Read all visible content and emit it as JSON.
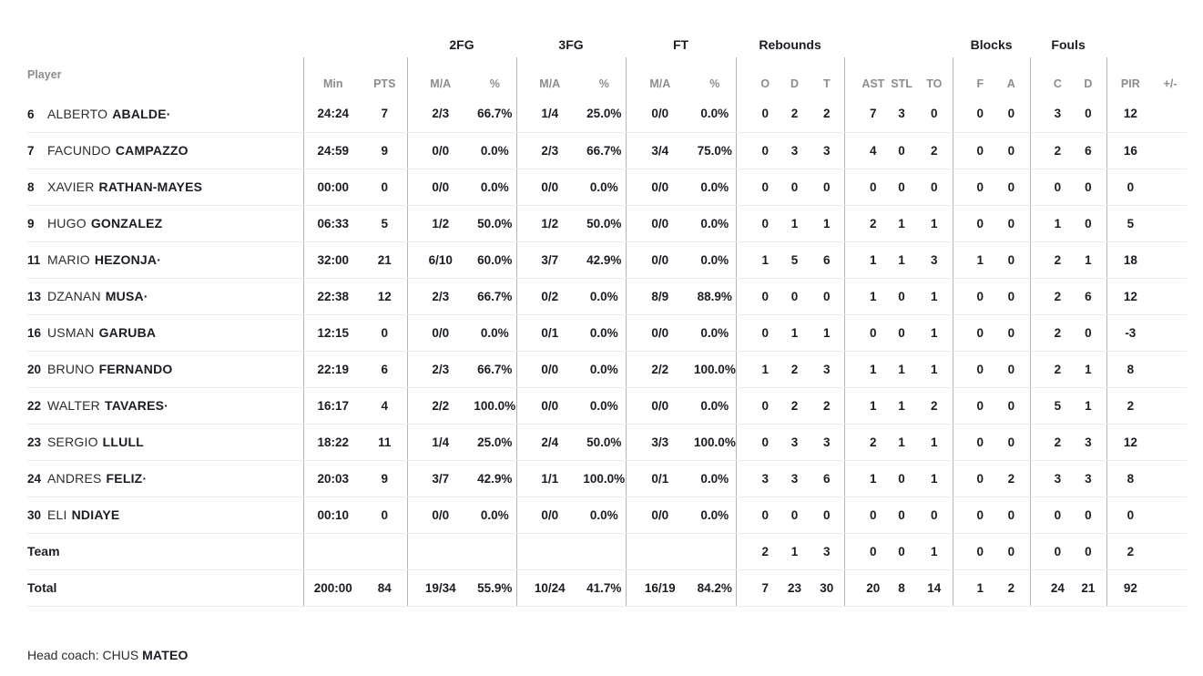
{
  "table": {
    "groups": {
      "fg2": "2FG",
      "fg3": "3FG",
      "ft": "FT",
      "rebounds": "Rebounds",
      "blocks": "Blocks",
      "fouls": "Fouls"
    },
    "columns": {
      "player": "Player",
      "min": "Min",
      "pts": "PTS",
      "ma": "M/A",
      "pct": "%",
      "o": "O",
      "d": "D",
      "t": "T",
      "ast": "AST",
      "stl": "STL",
      "to": "TO",
      "f": "F",
      "a": "A",
      "c": "C",
      "pir": "PIR",
      "pm": "+/-"
    },
    "rows": [
      {
        "num": "6",
        "first": "ALBERTO",
        "last": "ABALDE",
        "starter": true,
        "min": "24:24",
        "pts": "7",
        "fg2_ma": "2/3",
        "fg2_pct": "66.7%",
        "fg3_ma": "1/4",
        "fg3_pct": "25.0%",
        "ft_ma": "0/0",
        "ft_pct": "0.0%",
        "reb_o": "0",
        "reb_d": "2",
        "reb_t": "2",
        "ast": "7",
        "stl": "3",
        "to": "0",
        "blk_f": "0",
        "blk_a": "0",
        "foul_c": "3",
        "foul_d": "0",
        "pir": "12",
        "pm": ""
      },
      {
        "num": "7",
        "first": "FACUNDO",
        "last": "CAMPAZZO",
        "starter": false,
        "min": "24:59",
        "pts": "9",
        "fg2_ma": "0/0",
        "fg2_pct": "0.0%",
        "fg3_ma": "2/3",
        "fg3_pct": "66.7%",
        "ft_ma": "3/4",
        "ft_pct": "75.0%",
        "reb_o": "0",
        "reb_d": "3",
        "reb_t": "3",
        "ast": "4",
        "stl": "0",
        "to": "2",
        "blk_f": "0",
        "blk_a": "0",
        "foul_c": "2",
        "foul_d": "6",
        "pir": "16",
        "pm": ""
      },
      {
        "num": "8",
        "first": "XAVIER",
        "last": "RATHAN-MAYES",
        "starter": false,
        "min": "00:00",
        "pts": "0",
        "fg2_ma": "0/0",
        "fg2_pct": "0.0%",
        "fg3_ma": "0/0",
        "fg3_pct": "0.0%",
        "ft_ma": "0/0",
        "ft_pct": "0.0%",
        "reb_o": "0",
        "reb_d": "0",
        "reb_t": "0",
        "ast": "0",
        "stl": "0",
        "to": "0",
        "blk_f": "0",
        "blk_a": "0",
        "foul_c": "0",
        "foul_d": "0",
        "pir": "0",
        "pm": ""
      },
      {
        "num": "9",
        "first": "HUGO",
        "last": "GONZALEZ",
        "starter": false,
        "min": "06:33",
        "pts": "5",
        "fg2_ma": "1/2",
        "fg2_pct": "50.0%",
        "fg3_ma": "1/2",
        "fg3_pct": "50.0%",
        "ft_ma": "0/0",
        "ft_pct": "0.0%",
        "reb_o": "0",
        "reb_d": "1",
        "reb_t": "1",
        "ast": "2",
        "stl": "1",
        "to": "1",
        "blk_f": "0",
        "blk_a": "0",
        "foul_c": "1",
        "foul_d": "0",
        "pir": "5",
        "pm": ""
      },
      {
        "num": "11",
        "first": "MARIO",
        "last": "HEZONJA",
        "starter": true,
        "min": "32:00",
        "pts": "21",
        "fg2_ma": "6/10",
        "fg2_pct": "60.0%",
        "fg3_ma": "3/7",
        "fg3_pct": "42.9%",
        "ft_ma": "0/0",
        "ft_pct": "0.0%",
        "reb_o": "1",
        "reb_d": "5",
        "reb_t": "6",
        "ast": "1",
        "stl": "1",
        "to": "3",
        "blk_f": "1",
        "blk_a": "0",
        "foul_c": "2",
        "foul_d": "1",
        "pir": "18",
        "pm": ""
      },
      {
        "num": "13",
        "first": "DZANAN",
        "last": "MUSA",
        "starter": true,
        "min": "22:38",
        "pts": "12",
        "fg2_ma": "2/3",
        "fg2_pct": "66.7%",
        "fg3_ma": "0/2",
        "fg3_pct": "0.0%",
        "ft_ma": "8/9",
        "ft_pct": "88.9%",
        "reb_o": "0",
        "reb_d": "0",
        "reb_t": "0",
        "ast": "1",
        "stl": "0",
        "to": "1",
        "blk_f": "0",
        "blk_a": "0",
        "foul_c": "2",
        "foul_d": "6",
        "pir": "12",
        "pm": ""
      },
      {
        "num": "16",
        "first": "USMAN",
        "last": "GARUBA",
        "starter": false,
        "min": "12:15",
        "pts": "0",
        "fg2_ma": "0/0",
        "fg2_pct": "0.0%",
        "fg3_ma": "0/1",
        "fg3_pct": "0.0%",
        "ft_ma": "0/0",
        "ft_pct": "0.0%",
        "reb_o": "0",
        "reb_d": "1",
        "reb_t": "1",
        "ast": "0",
        "stl": "0",
        "to": "1",
        "blk_f": "0",
        "blk_a": "0",
        "foul_c": "2",
        "foul_d": "0",
        "pir": "-3",
        "pm": ""
      },
      {
        "num": "20",
        "first": "BRUNO",
        "last": "FERNANDO",
        "starter": false,
        "min": "22:19",
        "pts": "6",
        "fg2_ma": "2/3",
        "fg2_pct": "66.7%",
        "fg3_ma": "0/0",
        "fg3_pct": "0.0%",
        "ft_ma": "2/2",
        "ft_pct": "100.0%",
        "reb_o": "1",
        "reb_d": "2",
        "reb_t": "3",
        "ast": "1",
        "stl": "1",
        "to": "1",
        "blk_f": "0",
        "blk_a": "0",
        "foul_c": "2",
        "foul_d": "1",
        "pir": "8",
        "pm": ""
      },
      {
        "num": "22",
        "first": "WALTER",
        "last": "TAVARES",
        "starter": true,
        "min": "16:17",
        "pts": "4",
        "fg2_ma": "2/2",
        "fg2_pct": "100.0%",
        "fg3_ma": "0/0",
        "fg3_pct": "0.0%",
        "ft_ma": "0/0",
        "ft_pct": "0.0%",
        "reb_o": "0",
        "reb_d": "2",
        "reb_t": "2",
        "ast": "1",
        "stl": "1",
        "to": "2",
        "blk_f": "0",
        "blk_a": "0",
        "foul_c": "5",
        "foul_d": "1",
        "pir": "2",
        "pm": ""
      },
      {
        "num": "23",
        "first": "SERGIO",
        "last": "LLULL",
        "starter": false,
        "min": "18:22",
        "pts": "11",
        "fg2_ma": "1/4",
        "fg2_pct": "25.0%",
        "fg3_ma": "2/4",
        "fg3_pct": "50.0%",
        "ft_ma": "3/3",
        "ft_pct": "100.0%",
        "reb_o": "0",
        "reb_d": "3",
        "reb_t": "3",
        "ast": "2",
        "stl": "1",
        "to": "1",
        "blk_f": "0",
        "blk_a": "0",
        "foul_c": "2",
        "foul_d": "3",
        "pir": "12",
        "pm": ""
      },
      {
        "num": "24",
        "first": "ANDRES",
        "last": "FELIZ",
        "starter": true,
        "min": "20:03",
        "pts": "9",
        "fg2_ma": "3/7",
        "fg2_pct": "42.9%",
        "fg3_ma": "1/1",
        "fg3_pct": "100.0%",
        "ft_ma": "0/1",
        "ft_pct": "0.0%",
        "reb_o": "3",
        "reb_d": "3",
        "reb_t": "6",
        "ast": "1",
        "stl": "0",
        "to": "1",
        "blk_f": "0",
        "blk_a": "2",
        "foul_c": "3",
        "foul_d": "3",
        "pir": "8",
        "pm": ""
      },
      {
        "num": "30",
        "first": "ELI",
        "last": "NDIAYE",
        "starter": false,
        "min": "00:10",
        "pts": "0",
        "fg2_ma": "0/0",
        "fg2_pct": "0.0%",
        "fg3_ma": "0/0",
        "fg3_pct": "0.0%",
        "ft_ma": "0/0",
        "ft_pct": "0.0%",
        "reb_o": "0",
        "reb_d": "0",
        "reb_t": "0",
        "ast": "0",
        "stl": "0",
        "to": "0",
        "blk_f": "0",
        "blk_a": "0",
        "foul_c": "0",
        "foul_d": "0",
        "pir": "0",
        "pm": ""
      },
      {
        "label": "Team",
        "min": "",
        "pts": "",
        "fg2_ma": "",
        "fg2_pct": "",
        "fg3_ma": "",
        "fg3_pct": "",
        "ft_ma": "",
        "ft_pct": "",
        "reb_o": "2",
        "reb_d": "1",
        "reb_t": "3",
        "ast": "0",
        "stl": "0",
        "to": "1",
        "blk_f": "0",
        "blk_a": "0",
        "foul_c": "0",
        "foul_d": "0",
        "pir": "2",
        "pm": ""
      },
      {
        "label": "Total",
        "min": "200:00",
        "pts": "84",
        "fg2_ma": "19/34",
        "fg2_pct": "55.9%",
        "fg3_ma": "10/24",
        "fg3_pct": "41.7%",
        "ft_ma": "16/19",
        "ft_pct": "84.2%",
        "reb_o": "7",
        "reb_d": "23",
        "reb_t": "30",
        "ast": "20",
        "stl": "8",
        "to": "14",
        "blk_f": "1",
        "blk_a": "2",
        "foul_c": "24",
        "foul_d": "21",
        "pir": "92",
        "pm": ""
      }
    ]
  },
  "footer": {
    "head_coach_label": "Head coach:",
    "coach_first": "CHUS",
    "coach_last": "MATEO"
  },
  "colors": {
    "text_dark": "#1c1c24",
    "header_gray": "#8d8d8d",
    "divider": "#b5b5b5",
    "row_line": "#ebebeb",
    "background": "#ffffff"
  }
}
